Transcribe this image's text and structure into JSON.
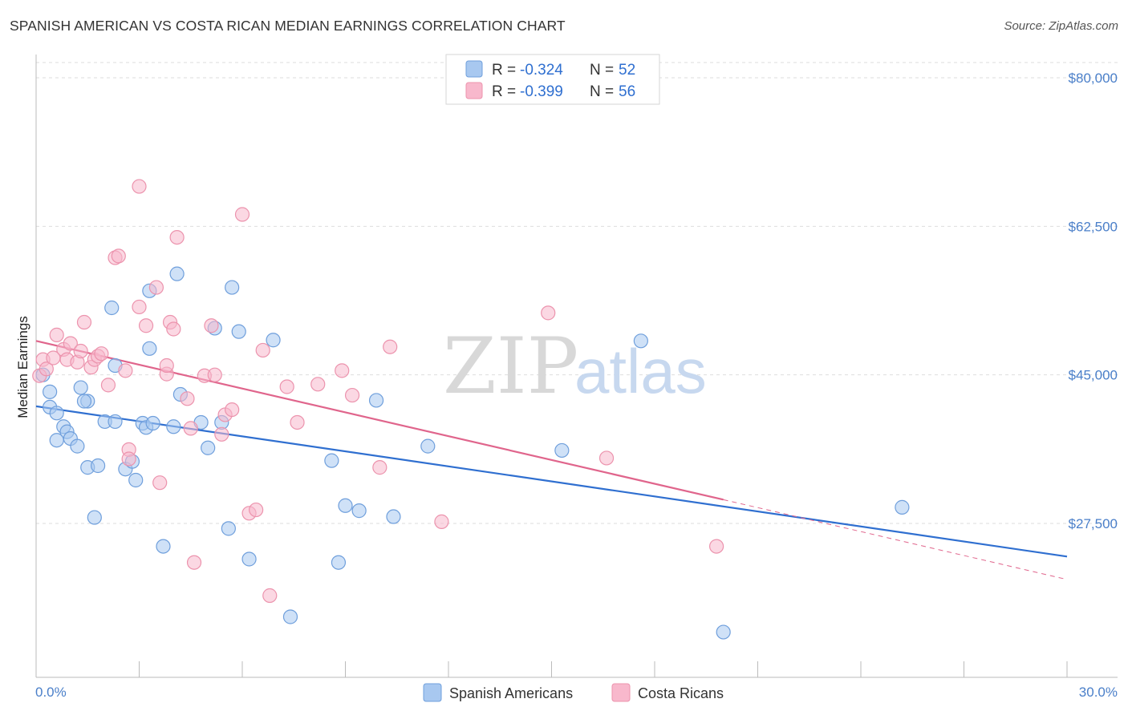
{
  "title": "SPANISH AMERICAN VS COSTA RICAN MEDIAN EARNINGS CORRELATION CHART",
  "source": "Source: ZipAtlas.com",
  "legend": {
    "rows": [
      {
        "r_label": "R = ",
        "r_value": "-0.324",
        "n_label": "N = ",
        "n_value": "52"
      },
      {
        "r_label": "R = ",
        "r_value": "-0.399",
        "n_label": "N = ",
        "n_value": "56"
      }
    ]
  },
  "watermark": {
    "zip": "ZIP",
    "atlas": "atlas"
  },
  "colors": {
    "blue_fill": "#a8c8f0",
    "blue_stroke": "#6f9fdc",
    "blue_line": "#2f6fd0",
    "pink_fill": "#f8b8cc",
    "pink_stroke": "#ec93ad",
    "pink_line": "#e0658c",
    "grid": "#dddddd",
    "axis_text": "#4a7fc9"
  },
  "chart_data": {
    "type": "scatter",
    "title": "SPANISH AMERICAN VS COSTA RICAN MEDIAN EARNINGS CORRELATION CHART",
    "xlabel": "",
    "ylabel": "Median Earnings",
    "xlim": [
      0,
      30
    ],
    "ylim": [
      8000,
      82000
    ],
    "x_tick_labels": [
      "0.0%",
      "30.0%"
    ],
    "y_ticks": [
      27500,
      45000,
      62500,
      80000
    ],
    "y_tick_labels": [
      "$27,500",
      "$45,000",
      "$62,500",
      "$80,000"
    ],
    "grid": true,
    "legend_position": "top-center",
    "series": [
      {
        "name": "Spanish Americans",
        "color": "#a8c8f0",
        "r": -0.324,
        "n": 52,
        "trend": {
          "x0": 0,
          "y0": 41300,
          "x1": 30,
          "y1": 23600
        },
        "points": [
          [
            0.2,
            45000
          ],
          [
            0.4,
            43000
          ],
          [
            0.4,
            41200
          ],
          [
            0.6,
            40500
          ],
          [
            0.8,
            38900
          ],
          [
            0.9,
            38300
          ],
          [
            1.0,
            37500
          ],
          [
            0.6,
            37300
          ],
          [
            1.2,
            36600
          ],
          [
            1.3,
            43500
          ],
          [
            1.5,
            41900
          ],
          [
            1.5,
            34100
          ],
          [
            1.8,
            34300
          ],
          [
            1.7,
            28200
          ],
          [
            2.0,
            39500
          ],
          [
            2.2,
            52900
          ],
          [
            2.3,
            46100
          ],
          [
            2.3,
            39500
          ],
          [
            2.6,
            33900
          ],
          [
            2.8,
            34800
          ],
          [
            2.9,
            32600
          ],
          [
            3.1,
            39300
          ],
          [
            3.2,
            38800
          ],
          [
            3.3,
            48100
          ],
          [
            3.4,
            39300
          ],
          [
            3.3,
            54900
          ],
          [
            3.7,
            24800
          ],
          [
            4.0,
            38900
          ],
          [
            4.1,
            56900
          ],
          [
            4.2,
            42700
          ],
          [
            4.8,
            39400
          ],
          [
            5.0,
            36400
          ],
          [
            5.2,
            50500
          ],
          [
            5.6,
            26900
          ],
          [
            5.7,
            55300
          ],
          [
            5.9,
            50100
          ],
          [
            6.2,
            23300
          ],
          [
            6.9,
            49100
          ],
          [
            7.4,
            16500
          ],
          [
            8.6,
            34900
          ],
          [
            8.8,
            22900
          ],
          [
            9.0,
            29600
          ],
          [
            9.4,
            29000
          ],
          [
            9.9,
            42000
          ],
          [
            10.4,
            28300
          ],
          [
            11.4,
            36600
          ],
          [
            15.3,
            36100
          ],
          [
            17.6,
            49000
          ],
          [
            20.0,
            14700
          ],
          [
            25.2,
            29400
          ],
          [
            5.4,
            39400
          ],
          [
            1.4,
            41900
          ]
        ]
      },
      {
        "name": "Costa Ricans",
        "color": "#f8b8cc",
        "r": -0.399,
        "n": 56,
        "trend": {
          "x0": 0,
          "y0": 49000,
          "x1": 20.0,
          "y1": 30300,
          "dash_x1": 30,
          "dash_y1": 20900
        },
        "points": [
          [
            0.1,
            44900
          ],
          [
            0.2,
            46800
          ],
          [
            0.3,
            45700
          ],
          [
            0.5,
            47000
          ],
          [
            0.6,
            49700
          ],
          [
            0.8,
            48000
          ],
          [
            0.9,
            46800
          ],
          [
            1.0,
            48700
          ],
          [
            1.2,
            46500
          ],
          [
            1.3,
            47800
          ],
          [
            1.4,
            51200
          ],
          [
            1.6,
            45900
          ],
          [
            1.7,
            46800
          ],
          [
            1.8,
            47200
          ],
          [
            1.9,
            47500
          ],
          [
            2.1,
            43800
          ],
          [
            2.3,
            58800
          ],
          [
            2.4,
            59000
          ],
          [
            2.6,
            45500
          ],
          [
            2.7,
            36200
          ],
          [
            2.7,
            35100
          ],
          [
            3.0,
            53000
          ],
          [
            3.0,
            67200
          ],
          [
            3.2,
            50800
          ],
          [
            3.5,
            55300
          ],
          [
            3.6,
            32300
          ],
          [
            3.8,
            45100
          ],
          [
            3.8,
            46100
          ],
          [
            3.9,
            51200
          ],
          [
            4.0,
            50400
          ],
          [
            4.1,
            61200
          ],
          [
            4.4,
            42200
          ],
          [
            4.5,
            38700
          ],
          [
            4.6,
            22900
          ],
          [
            4.9,
            44900
          ],
          [
            5.1,
            50800
          ],
          [
            5.2,
            45000
          ],
          [
            5.4,
            38000
          ],
          [
            5.5,
            40300
          ],
          [
            5.7,
            40900
          ],
          [
            6.0,
            63900
          ],
          [
            6.2,
            28700
          ],
          [
            6.4,
            29100
          ],
          [
            6.6,
            47900
          ],
          [
            6.8,
            19000
          ],
          [
            7.3,
            43600
          ],
          [
            7.6,
            39400
          ],
          [
            8.2,
            43900
          ],
          [
            8.9,
            45500
          ],
          [
            9.2,
            42600
          ],
          [
            10.0,
            34100
          ],
          [
            10.3,
            48300
          ],
          [
            11.8,
            27700
          ],
          [
            14.9,
            52300
          ],
          [
            16.6,
            35200
          ],
          [
            19.8,
            24800
          ]
        ]
      }
    ]
  }
}
